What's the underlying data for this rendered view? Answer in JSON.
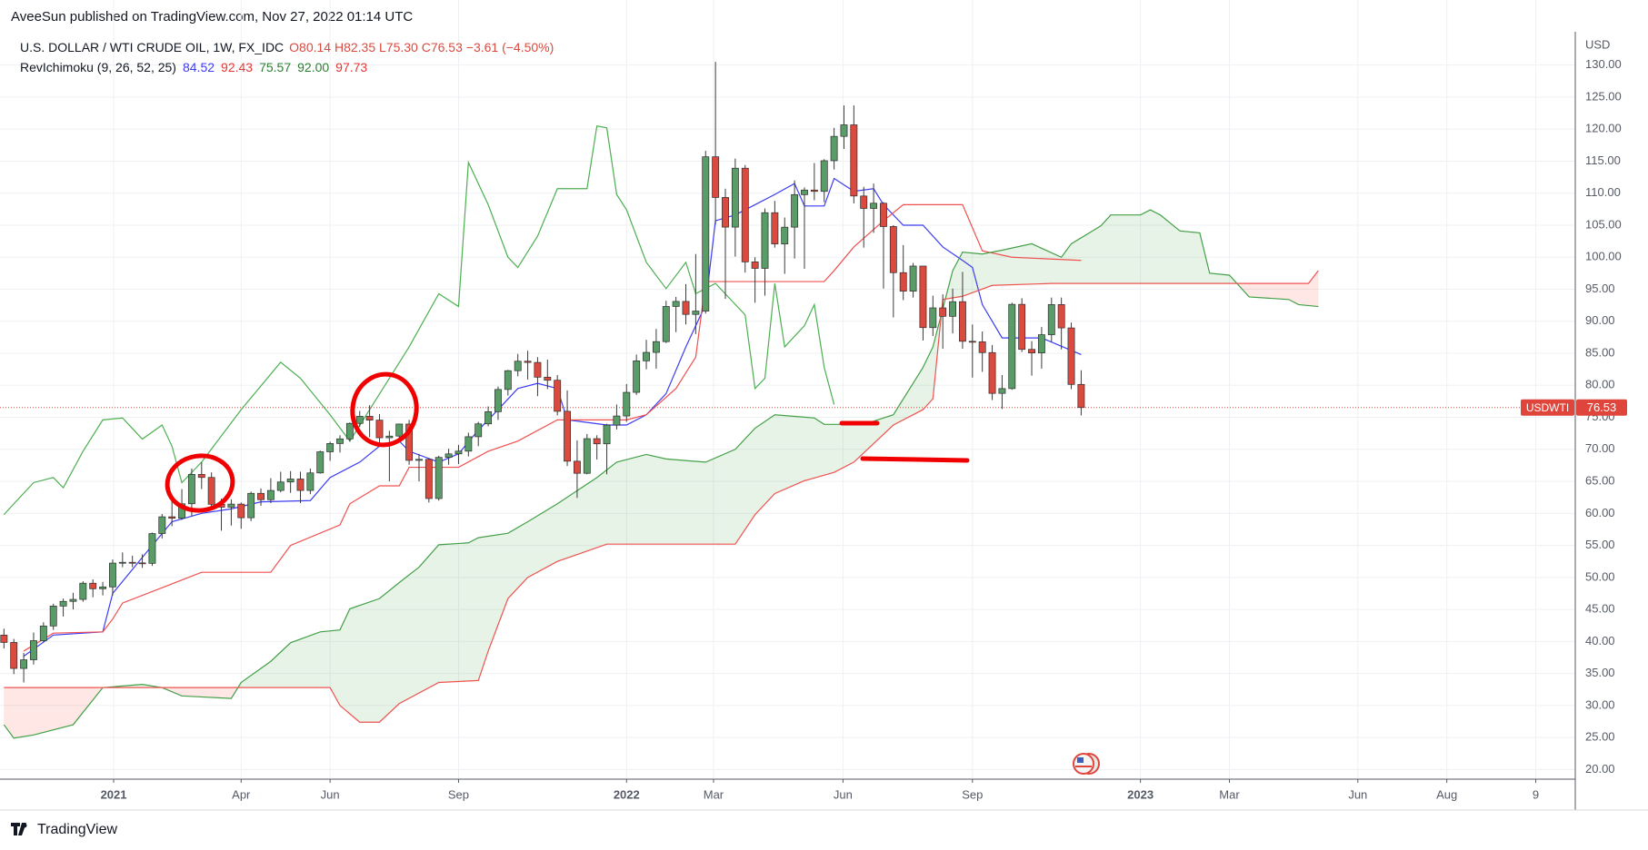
{
  "publisher": "AveeSun published on TradingView.com, Nov 27, 2022 01:14 UTC",
  "footer": "TradingView",
  "chart_data": {
    "type": "candlestick",
    "title": "U.S. DOLLAR / WTI CRUDE OIL, 1W, FX_IDC",
    "ohlc_label": "O80.14 H82.35 L75.30 C76.53 −3.61 (−4.50%)",
    "indicator_label": "RevIchimoku (9, 26, 52, 25)",
    "indicator_values": [
      {
        "text": "84.52",
        "color": "#3b3bf5"
      },
      {
        "text": "92.43",
        "color": "#e53935"
      },
      {
        "text": "75.57",
        "color": "#2e7d32"
      },
      {
        "text": "92.00",
        "color": "#2e7d32"
      },
      {
        "text": "97.73",
        "color": "#e53935"
      }
    ],
    "y_axis_label": "USD",
    "price_line": {
      "label": "USDWTI",
      "value": 76.53,
      "color": "#e0453b"
    },
    "up_color": "#5a9c68",
    "down_color": "#db4a3f",
    "x": [
      0,
      1,
      2,
      3,
      4,
      5,
      6,
      7,
      8,
      9,
      10,
      11,
      12,
      13,
      14,
      15,
      16,
      17,
      18,
      19,
      20,
      21,
      22,
      23,
      24,
      25,
      26,
      27,
      28,
      29,
      30,
      31,
      32,
      33,
      34,
      35,
      36,
      37,
      38,
      39,
      40,
      41,
      42,
      43,
      44,
      45,
      46,
      47,
      48,
      49,
      50,
      51,
      52,
      53,
      54,
      55,
      56,
      57,
      58,
      59,
      60,
      61,
      62,
      63,
      64,
      65,
      66,
      67,
      68,
      69,
      70,
      71,
      72,
      73,
      74,
      75,
      76,
      77,
      78,
      79,
      80,
      81,
      82,
      83,
      84,
      85,
      86,
      87,
      88,
      89,
      90,
      91,
      92,
      93,
      94,
      95,
      96,
      97,
      98,
      99,
      100,
      101,
      102,
      103,
      104,
      105,
      106,
      107,
      108,
      109
    ],
    "open": [
      41.0,
      39.85,
      35.79,
      37.14,
      40.13,
      42.42,
      45.53,
      46.26,
      46.57,
      49.1,
      48.23,
      48.52,
      52.24,
      52.36,
      52.27,
      52.2,
      56.85,
      59.47,
      59.24,
      61.5,
      66.09,
      65.61,
      61.42,
      60.97,
      61.45,
      59.32,
      63.13,
      62.14,
      63.58,
      64.9,
      65.37,
      63.58,
      66.32,
      69.62,
      70.91,
      71.64,
      74.05,
      75.16,
      74.56,
      71.81,
      72.07,
      73.95,
      68.28,
      68.44,
      62.32,
      68.74,
      69.29,
      69.72,
      71.97,
      73.98,
      75.88,
      79.35,
      82.28,
      83.76,
      83.57,
      81.27,
      80.79,
      75.94,
      68.15,
      66.26,
      71.67,
      70.86,
      73.79,
      75.21,
      78.9,
      83.82,
      85.14,
      86.82,
      92.31,
      93.1,
      91.07,
      91.59,
      115.68,
      109.33,
      104.7,
      113.9,
      99.27,
      98.26,
      106.95,
      102.07,
      104.69,
      109.77,
      110.49,
      110.28,
      115.07,
      118.87,
      120.67,
      109.56,
      107.62,
      108.43,
      104.79,
      97.59,
      94.7,
      98.62,
      89.01,
      92.09,
      90.77,
      93.06,
      86.87,
      86.79,
      85.11,
      78.74,
      79.49,
      92.64,
      85.61,
      85.05,
      87.9,
      92.61,
      88.96,
      80.14
    ],
    "high": [
      42.0,
      40.4,
      38.2,
      41.4,
      43.0,
      45.9,
      46.7,
      47.6,
      49.4,
      49.7,
      49.3,
      52.8,
      53.9,
      53.4,
      53.6,
      57.0,
      59.9,
      62.3,
      63.8,
      67.0,
      68.0,
      66.4,
      62.3,
      62.2,
      61.7,
      63.4,
      63.9,
      65.5,
      66.5,
      66.6,
      66.5,
      67.0,
      69.8,
      71.2,
      72.2,
      74.2,
      76.0,
      76.9,
      75.5,
      72.9,
      74.0,
      74.6,
      69.3,
      68.6,
      69.0,
      70.1,
      70.7,
      72.6,
      74.3,
      76.7,
      79.8,
      82.4,
      84.9,
      85.4,
      84.4,
      84.0,
      81.6,
      79.2,
      71.4,
      72.4,
      72.2,
      74.0,
      77.0,
      80.2,
      84.8,
      87.1,
      88.8,
      93.2,
      93.8,
      95.8,
      100.5,
      116.6,
      130.5,
      110.7,
      115.4,
      114.4,
      100.0,
      107.6,
      108.8,
      106.2,
      112.0,
      110.9,
      114.7,
      115.3,
      120.2,
      123.7,
      123.7,
      111.0,
      111.5,
      108.6,
      105.0,
      101.9,
      99.1,
      98.6,
      94.0,
      94.2,
      95.1,
      97.7,
      89.5,
      88.4,
      86.3,
      81.6,
      92.9,
      93.6,
      86.9,
      89.1,
      93.7,
      93.7,
      89.8,
      82.35
    ],
    "low": [
      38.9,
      34.9,
      33.6,
      36.4,
      39.9,
      41.8,
      43.9,
      45.0,
      46.2,
      46.9,
      47.2,
      47.2,
      51.6,
      51.6,
      51.5,
      51.8,
      56.1,
      58.0,
      59.0,
      59.6,
      63.8,
      60.7,
      57.3,
      58.1,
      57.6,
      58.8,
      61.2,
      61.6,
      63.3,
      63.2,
      61.6,
      63.0,
      66.2,
      68.2,
      69.5,
      71.2,
      73.5,
      71.9,
      70.8,
      65.0,
      71.1,
      67.6,
      65.0,
      61.7,
      62.0,
      67.6,
      67.7,
      68.9,
      70.5,
      73.6,
      74.6,
      78.4,
      81.4,
      80.9,
      78.3,
      79.4,
      75.3,
      67.4,
      62.4,
      66.1,
      68.4,
      66.1,
      73.1,
      74.3,
      78.5,
      82.5,
      82.6,
      86.6,
      88.3,
      89.5,
      88.0,
      91.2,
      105.1,
      93.5,
      100.1,
      97.6,
      92.9,
      94.0,
      101.5,
      97.4,
      99.8,
      98.2,
      108.9,
      108.6,
      113.7,
      116.9,
      108.4,
      101.5,
      103.8,
      95.1,
      90.6,
      93.3,
      93.7,
      87.0,
      87.7,
      85.7,
      88.1,
      85.7,
      81.2,
      82.1,
      77.7,
      76.3,
      79.3,
      85.2,
      81.5,
      82.6,
      86.8,
      85.6,
      79.4,
      75.3
    ],
    "close": [
      39.85,
      35.79,
      37.14,
      40.13,
      42.42,
      45.53,
      46.26,
      46.57,
      49.1,
      48.23,
      48.52,
      52.24,
      52.36,
      52.27,
      52.2,
      56.85,
      59.47,
      59.24,
      61.5,
      66.09,
      65.61,
      61.42,
      60.97,
      61.45,
      59.32,
      63.13,
      62.14,
      63.58,
      64.9,
      65.37,
      63.58,
      66.32,
      69.62,
      70.91,
      71.64,
      74.05,
      75.16,
      74.56,
      71.81,
      72.07,
      73.95,
      68.28,
      68.44,
      62.32,
      68.74,
      69.29,
      69.72,
      71.97,
      73.98,
      75.88,
      79.35,
      82.28,
      83.76,
      83.57,
      81.27,
      80.79,
      75.94,
      68.15,
      66.26,
      71.67,
      70.86,
      73.79,
      75.21,
      78.9,
      83.82,
      85.14,
      86.82,
      92.31,
      93.1,
      91.07,
      91.59,
      115.68,
      109.33,
      104.7,
      113.9,
      99.27,
      98.26,
      106.95,
      102.07,
      104.69,
      109.77,
      110.49,
      110.28,
      115.07,
      118.87,
      120.67,
      109.56,
      107.62,
      108.43,
      104.79,
      97.59,
      94.7,
      98.62,
      89.01,
      92.09,
      90.77,
      93.06,
      86.87,
      86.79,
      85.11,
      78.74,
      79.49,
      92.64,
      85.61,
      85.05,
      87.9,
      92.61,
      88.96,
      80.14,
      76.53
    ],
    "lines": [
      {
        "color": "#3b3bf5",
        "x": [
          2,
          5,
          10,
          11,
          15,
          17,
          20,
          23,
          26,
          31,
          33,
          36,
          38,
          40,
          41,
          44,
          46,
          48,
          50,
          52,
          54,
          56,
          57,
          61,
          63,
          65,
          67,
          69,
          71,
          72,
          74,
          76,
          78,
          80,
          81,
          83,
          84,
          86,
          88,
          89,
          91,
          93,
          95,
          97,
          98,
          99,
          101,
          103,
          105,
          109
        ],
        "values": [
          37.7,
          41,
          41.5,
          47.5,
          55,
          58.7,
          60,
          60.7,
          61.8,
          62,
          65.6,
          68,
          70.5,
          71.3,
          69.7,
          68,
          69.3,
          73,
          76.2,
          79.5,
          80.3,
          79.5,
          74.6,
          73.8,
          73.8,
          75.4,
          78.7,
          86,
          92.6,
          105.7,
          106.6,
          108.2,
          109.8,
          111.5,
          108,
          108,
          112.3,
          110.3,
          110.7,
          108.2,
          105,
          105,
          101.6,
          99.5,
          98.4,
          92.6,
          87.4,
          87.4,
          87.4,
          84.8
        ]
      },
      {
        "color": "#f05050",
        "x": [
          2,
          5,
          10,
          11,
          12,
          16,
          20,
          27,
          29,
          34,
          35,
          38,
          40,
          41,
          46,
          49,
          52,
          56,
          63,
          65,
          68,
          70,
          71,
          83,
          84,
          86,
          89,
          91,
          97,
          99,
          102,
          109
        ],
        "values": [
          38.5,
          41.3,
          41.5,
          43.5,
          46,
          48.4,
          50.8,
          50.8,
          55,
          58.2,
          61.5,
          64.3,
          64.3,
          67.2,
          67.2,
          69.7,
          71.3,
          74.6,
          74.6,
          75.4,
          79.5,
          84.4,
          96.2,
          96.2,
          97.9,
          101.6,
          105.7,
          108.2,
          108.2,
          101,
          100,
          99.5
        ]
      },
      {
        "color": "#4caf50",
        "x": [
          0,
          1,
          3,
          5,
          6,
          8,
          10,
          12,
          14,
          16,
          17,
          18,
          20,
          24,
          28,
          30,
          33,
          35,
          39,
          41,
          44,
          46,
          47,
          49,
          51,
          52,
          54,
          56,
          59,
          60,
          61,
          62,
          63,
          65,
          67,
          69,
          70,
          72,
          75,
          76,
          77,
          78,
          79,
          81,
          82,
          83,
          84
        ],
        "values": [
          59.8,
          61.5,
          64.8,
          65.6,
          64,
          69.7,
          74.6,
          74.9,
          71.6,
          73.8,
          70.5,
          64.8,
          68,
          76.2,
          83.6,
          81.1,
          75.4,
          71.3,
          81.1,
          86,
          94.3,
          92.3,
          114.8,
          108.2,
          100,
          98.4,
          103.3,
          110.7,
          110.7,
          120.5,
          120.2,
          109.8,
          107.4,
          99.2,
          95.1,
          99.2,
          94.3,
          95.9,
          91,
          79.5,
          81.1,
          95.9,
          86,
          89.3,
          92.6,
          82.8,
          77
        ]
      },
      {
        "color": "#43a047",
        "x": [
          0,
          1,
          3,
          7,
          10,
          14,
          16,
          18,
          23,
          24,
          27,
          29,
          32,
          34,
          35,
          38,
          40,
          42,
          44,
          47,
          48,
          51,
          53,
          56,
          60,
          62,
          65,
          67,
          71,
          74,
          76,
          78,
          82,
          83,
          87,
          90,
          93,
          94,
          96,
          97,
          99,
          101,
          104,
          107,
          108,
          111,
          112,
          115,
          116,
          117,
          119,
          121,
          122,
          124,
          126,
          130,
          131,
          133
        ],
        "values": [
          27,
          24.9,
          25.4,
          27,
          32.8,
          33.3,
          32.8,
          31.5,
          31.1,
          33.6,
          36.9,
          39.8,
          41.5,
          41.8,
          45.1,
          46.7,
          49.2,
          51.6,
          55.1,
          55.4,
          56.2,
          56.9,
          58.7,
          61.5,
          65.6,
          68,
          69.2,
          68.5,
          68,
          70,
          73.3,
          75.4,
          74.9,
          73.9,
          73.9,
          75.4,
          82.8,
          86,
          97.9,
          100.8,
          100.5,
          101.1,
          102.1,
          100,
          102.1,
          104.9,
          106.6,
          106.6,
          107.4,
          106.6,
          104.1,
          103.8,
          97.5,
          97.2,
          93.8,
          93.4,
          92.6,
          92.3
        ]
      },
      {
        "color": "#ef5350",
        "x": [
          0,
          33,
          34,
          36,
          38,
          40,
          44,
          48,
          49,
          51,
          53,
          56,
          61,
          74,
          76,
          78,
          81,
          84,
          86,
          90,
          93,
          94,
          95,
          97,
          100,
          106,
          132,
          133
        ],
        "values": [
          32.8,
          32.8,
          30,
          27.4,
          27.4,
          30.3,
          33.6,
          33.9,
          38.5,
          46.7,
          50,
          52.5,
          55.2,
          55.2,
          59.8,
          63.1,
          65.1,
          66.4,
          68,
          73.8,
          76.2,
          77.9,
          93.4,
          93.9,
          95.6,
          95.9,
          95.9,
          97.9
        ]
      }
    ],
    "cloud": {
      "a": 3,
      "b": 4,
      "up_color": "#43a047",
      "down_color": "#f44336",
      "opacity": 0.13
    },
    "xlim": [
      -0.4,
      159
    ],
    "xticks": [
      {
        "value": 11.1,
        "label": "2021",
        "bold": true
      },
      {
        "value": 24,
        "label": "Apr"
      },
      {
        "value": 33,
        "label": "Jun"
      },
      {
        "value": 46,
        "label": "Sep"
      },
      {
        "value": 63,
        "label": "2022",
        "bold": true
      },
      {
        "value": 71.8,
        "label": "Mar"
      },
      {
        "value": 84.9,
        "label": "Jun"
      },
      {
        "value": 98,
        "label": "Sep"
      },
      {
        "value": 115,
        "label": "2023",
        "bold": true
      },
      {
        "value": 124,
        "label": "Mar"
      },
      {
        "value": 137,
        "label": "Jun"
      },
      {
        "value": 146,
        "label": "Aug"
      },
      {
        "value": 155,
        "label": "9"
      }
    ],
    "ylim": [
      18.5,
      135.2
    ],
    "yticks": [
      {
        "value": 20,
        "label": "20.00"
      },
      {
        "value": 25,
        "label": "25.00"
      },
      {
        "value": 30,
        "label": "30.00"
      },
      {
        "value": 35,
        "label": "35.00"
      },
      {
        "value": 40,
        "label": "40.00"
      },
      {
        "value": 45,
        "label": "45.00"
      },
      {
        "value": 50,
        "label": "50.00"
      },
      {
        "value": 55,
        "label": "55.00"
      },
      {
        "value": 60,
        "label": "60.00"
      },
      {
        "value": 65,
        "label": "65.00"
      },
      {
        "value": 70,
        "label": "70.00"
      },
      {
        "value": 75,
        "label": "75.00"
      },
      {
        "value": 80,
        "label": "80.00"
      },
      {
        "value": 85,
        "label": "85.00"
      },
      {
        "value": 90,
        "label": "90.00"
      },
      {
        "value": 95,
        "label": "95.00"
      },
      {
        "value": 100,
        "label": "100.00"
      },
      {
        "value": 105,
        "label": "105.00"
      },
      {
        "value": 110,
        "label": "110.00"
      },
      {
        "value": 115,
        "label": "115.00"
      },
      {
        "value": 120,
        "label": "120.00"
      },
      {
        "value": 125,
        "label": "125.00"
      },
      {
        "value": 130,
        "label": "130.00"
      }
    ],
    "grid": true
  }
}
